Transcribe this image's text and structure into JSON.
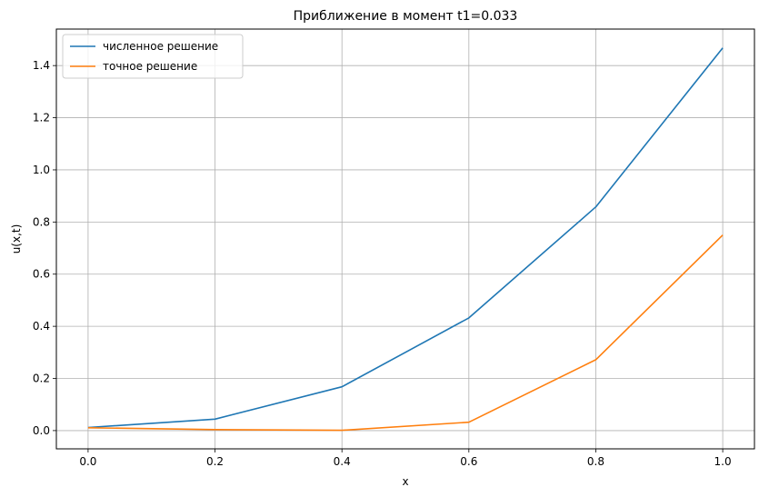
{
  "chart_data": {
    "type": "line",
    "title": "Приближение в момент t1=0.033",
    "xlabel": "x",
    "ylabel": "u(x,t)",
    "xlim": [
      -0.05,
      1.05
    ],
    "ylim": [
      -0.07,
      1.54
    ],
    "xticks": [
      0.0,
      0.2,
      0.4,
      0.6,
      0.8,
      1.0
    ],
    "xtick_labels": [
      "0.0",
      "0.2",
      "0.4",
      "0.6",
      "0.8",
      "1.0"
    ],
    "yticks": [
      0.0,
      0.2,
      0.4,
      0.6,
      0.8,
      1.0,
      1.2,
      1.4
    ],
    "ytick_labels": [
      "0.0",
      "0.2",
      "0.4",
      "0.6",
      "0.8",
      "1.0",
      "1.2",
      "1.4"
    ],
    "grid": true,
    "legend_position": "top-left",
    "series": [
      {
        "name": "численное решение",
        "color": "#1f77b4",
        "x": [
          0.0,
          0.2,
          0.4,
          0.6,
          0.8,
          1.0
        ],
        "y": [
          0.012,
          0.044,
          0.168,
          0.432,
          0.858,
          1.468
        ]
      },
      {
        "name": "точное решение",
        "color": "#ff7f0e",
        "x": [
          0.0,
          0.2,
          0.4,
          0.6,
          0.8,
          1.0
        ],
        "y": [
          0.011,
          0.004,
          0.001,
          0.032,
          0.272,
          0.75
        ]
      }
    ]
  }
}
